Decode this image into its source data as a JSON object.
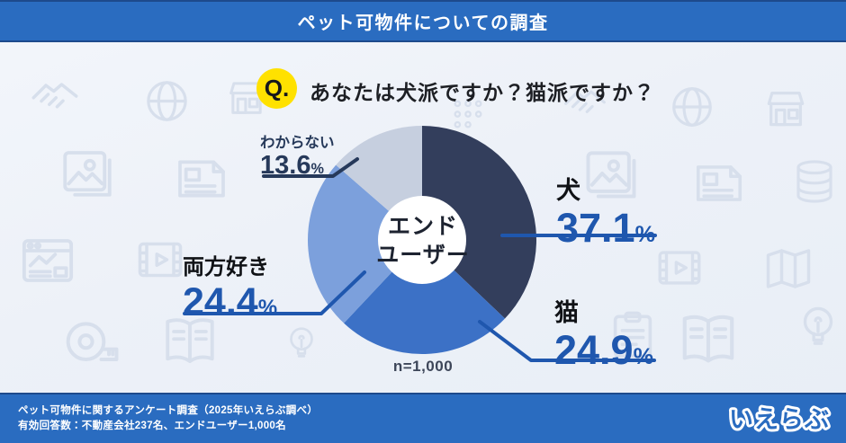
{
  "header": {
    "title": "ペット可物件についての調査"
  },
  "question": {
    "badge": "Q.",
    "text": "あなたは犬派ですか？猫派ですか？"
  },
  "chart_data": {
    "type": "pie",
    "donut": true,
    "title": "あなたは犬派ですか？猫派ですか？",
    "categories": [
      "犬",
      "猫",
      "両方好き",
      "わからない"
    ],
    "values": [
      37.1,
      24.9,
      24.4,
      13.6
    ],
    "unit": "%",
    "percent_sign": "%",
    "start_angle": "12-oclock",
    "direction": "clockwise",
    "center_line1": "エンド",
    "center_line2": "ユーザー",
    "n_label": "n=1,000",
    "segments": [
      {
        "label": "犬",
        "value": 37.1,
        "display": "37.1",
        "color": "#333E5C",
        "value_color": "#1F57AE"
      },
      {
        "label": "猫",
        "value": 24.9,
        "display": "24.9",
        "color": "#3C71C6",
        "value_color": "#1F57AE"
      },
      {
        "label": "両方好き",
        "value": 24.4,
        "display": "24.4",
        "color": "#7CA0DC",
        "value_color": "#1F57AE"
      },
      {
        "label": "わからない",
        "value": 13.6,
        "display": "13.6",
        "color": "#C6CFDF",
        "value_color": "#26395A"
      }
    ]
  },
  "footer": {
    "line1": "ペット可物件に関するアンケート調査（2025年いえらぶ調べ）",
    "line2": "有効回答数：不動産会社237名、エンドユーザー1,000名",
    "logo": "いえらぶ"
  },
  "colors": {
    "primary_blue": "#2A6CC0",
    "band_border": "#1D4A8C",
    "accent_value_blue": "#1F57AE",
    "dark_navy_text": "#26395A",
    "q_badge_yellow": "#FFE100",
    "background": "#EDF1F8"
  },
  "background_icons": [
    "handshake",
    "globe",
    "storefront",
    "dots-grid",
    "photo",
    "newspaper",
    "database",
    "browser-window",
    "film",
    "map",
    "tape-measure",
    "open-book",
    "lightbulb",
    "clipboard"
  ]
}
